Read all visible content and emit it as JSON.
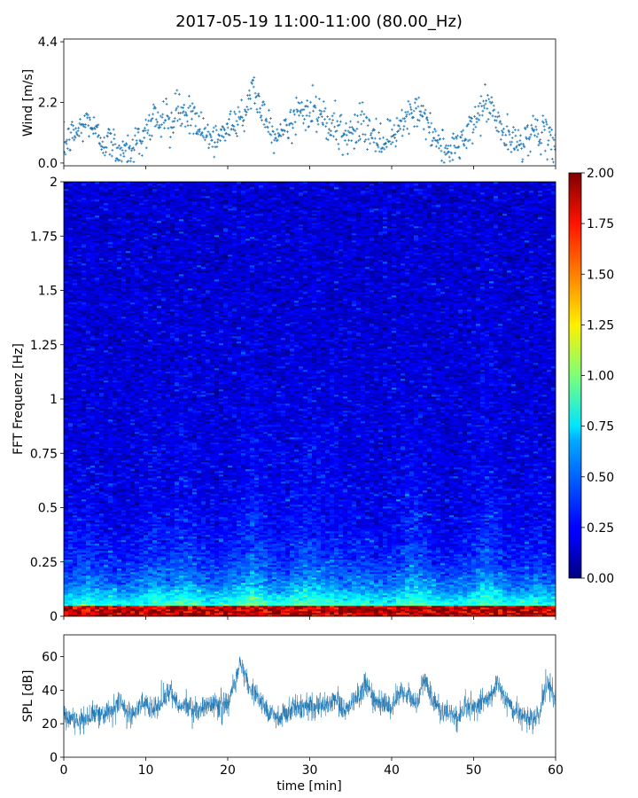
{
  "figure": {
    "title": "2017-05-19 11:00-11:00 (80.00_Hz)"
  },
  "chart_data": [
    {
      "type": "scatter",
      "panel": "wind",
      "ylabel": "Wind [m/s]",
      "xlim": [
        0,
        60
      ],
      "ylim": [
        -0.1,
        4.5
      ],
      "yticks": [
        0.0,
        2.2,
        4.4
      ],
      "ytick_labels": [
        "0.0",
        "2.2",
        "4.4"
      ],
      "marker": "+",
      "color": "#1f77b4",
      "trend": {
        "x": [
          0,
          1,
          2,
          3,
          4,
          5,
          6,
          7,
          8,
          9,
          10,
          11,
          12,
          13,
          14,
          15,
          16,
          17,
          18,
          19,
          20,
          21,
          22,
          23,
          24,
          25,
          26,
          27,
          28,
          29,
          30,
          31,
          32,
          33,
          34,
          35,
          36,
          37,
          38,
          39,
          40,
          41,
          42,
          43,
          44,
          45,
          46,
          47,
          48,
          49,
          50,
          51,
          52,
          53,
          54,
          55,
          56,
          57,
          58,
          59,
          60
        ],
        "y": [
          0.6,
          1.0,
          1.2,
          1.6,
          1.0,
          0.8,
          0.7,
          0.4,
          0.5,
          0.8,
          1.2,
          1.8,
          1.5,
          1.3,
          2.0,
          1.8,
          1.5,
          1.1,
          0.8,
          0.9,
          1.3,
          1.6,
          1.8,
          2.8,
          2.0,
          1.4,
          1.0,
          1.3,
          1.6,
          1.9,
          2.0,
          1.8,
          1.3,
          1.6,
          1.2,
          1.0,
          1.4,
          1.3,
          0.8,
          0.7,
          0.8,
          1.4,
          2.0,
          1.9,
          1.5,
          1.0,
          0.6,
          0.5,
          0.7,
          0.8,
          1.4,
          2.0,
          2.1,
          1.4,
          0.9,
          0.7,
          0.8,
          1.1,
          1.2,
          0.8,
          0.6
        ]
      }
    },
    {
      "type": "heatmap",
      "panel": "spectrogram",
      "ylabel": "FFT Frequenz [Hz]",
      "xlim": [
        0,
        60
      ],
      "ylim": [
        0,
        2
      ],
      "yticks": [
        0,
        0.25,
        0.5,
        0.75,
        1,
        1.25,
        1.5,
        1.75,
        2
      ],
      "ytick_labels": [
        "0",
        "0.25",
        "0.5",
        "0.75",
        "1",
        "1.25",
        "1.5",
        "1.75",
        "2"
      ],
      "colormap": "jet",
      "colorbar": {
        "range": [
          0.0,
          2.0
        ],
        "ticks": [
          0.0,
          0.25,
          0.5,
          0.75,
          1.0,
          1.25,
          1.5,
          1.75,
          2.0
        ],
        "tick_labels": [
          "0.00",
          "0.25",
          "0.50",
          "0.75",
          "1.00",
          "1.25",
          "1.50",
          "1.75",
          "2.00"
        ]
      }
    },
    {
      "type": "line",
      "panel": "spl",
      "ylabel": "SPL [dB]",
      "xlabel": "time [min]",
      "xlim": [
        0,
        60
      ],
      "ylim": [
        0,
        73
      ],
      "xticks": [
        0,
        10,
        20,
        30,
        40,
        50,
        60
      ],
      "xtick_labels": [
        "0",
        "10",
        "20",
        "30",
        "40",
        "50",
        "60"
      ],
      "yticks": [
        0,
        20,
        40,
        60
      ],
      "ytick_labels": [
        "0",
        "20",
        "40",
        "60"
      ],
      "color": "#1f77b4",
      "trend": {
        "x": [
          0,
          2,
          4,
          6,
          7,
          8,
          10,
          11,
          12,
          13,
          14,
          15,
          16,
          17,
          18,
          19,
          20,
          21,
          21.5,
          22,
          23,
          24,
          25,
          26,
          27,
          28,
          30,
          32,
          33,
          34,
          35,
          36,
          37,
          38,
          40,
          41,
          42,
          43,
          44,
          45,
          46,
          47,
          48,
          49,
          50,
          51,
          52,
          53,
          54,
          55,
          56,
          57,
          58,
          59,
          60
        ],
        "y": [
          24,
          23,
          26,
          28,
          34,
          24,
          33,
          28,
          32,
          40,
          30,
          31,
          28,
          29,
          32,
          30,
          33,
          45,
          58,
          50,
          40,
          33,
          27,
          24,
          26,
          30,
          30,
          32,
          36,
          28,
          32,
          36,
          42,
          33,
          29,
          39,
          38,
          30,
          48,
          34,
          28,
          27,
          23,
          30,
          29,
          33,
          36,
          44,
          34,
          28,
          24,
          23,
          24,
          46,
          33
        ]
      }
    }
  ]
}
